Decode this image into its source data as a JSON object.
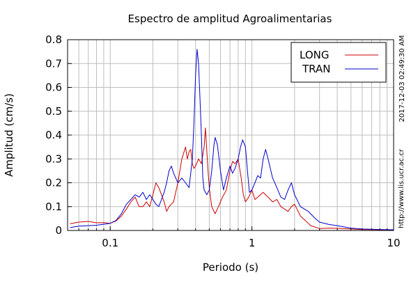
{
  "chart_data": {
    "type": "line",
    "title": "Espectro de amplitud Agroalimentarias",
    "xlabel": "Periodo (s)",
    "ylabel": "Amplitud (cm/s)",
    "x_scale": "log",
    "xlim": [
      0.05,
      10
    ],
    "ylim": [
      0,
      0.8
    ],
    "x_ticks": [
      {
        "value": 0.1,
        "label": "0.1"
      },
      {
        "value": 1,
        "label": "1"
      },
      {
        "value": 10,
        "label": "10"
      }
    ],
    "y_ticks": [
      {
        "value": 0,
        "label": "0"
      },
      {
        "value": 0.1,
        "label": "0.1"
      },
      {
        "value": 0.2,
        "label": "0.2"
      },
      {
        "value": 0.3,
        "label": "0.3"
      },
      {
        "value": 0.4,
        "label": "0.4"
      },
      {
        "value": 0.5,
        "label": "0.5"
      },
      {
        "value": 0.6,
        "label": "0.6"
      },
      {
        "value": 0.7,
        "label": "0.7"
      },
      {
        "value": 0.8,
        "label": "0.8"
      }
    ],
    "grid": true,
    "legend_position": "top-right",
    "series": [
      {
        "name": "LONG",
        "color": "#cc0000",
        "points": [
          [
            0.052,
            0.028
          ],
          [
            0.06,
            0.035
          ],
          [
            0.07,
            0.038
          ],
          [
            0.08,
            0.032
          ],
          [
            0.09,
            0.033
          ],
          [
            0.1,
            0.03
          ],
          [
            0.11,
            0.04
          ],
          [
            0.12,
            0.06
          ],
          [
            0.13,
            0.09
          ],
          [
            0.14,
            0.12
          ],
          [
            0.15,
            0.14
          ],
          [
            0.16,
            0.1
          ],
          [
            0.17,
            0.1
          ],
          [
            0.18,
            0.12
          ],
          [
            0.19,
            0.1
          ],
          [
            0.2,
            0.15
          ],
          [
            0.21,
            0.2
          ],
          [
            0.22,
            0.18
          ],
          [
            0.23,
            0.15
          ],
          [
            0.24,
            0.12
          ],
          [
            0.25,
            0.08
          ],
          [
            0.26,
            0.1
          ],
          [
            0.28,
            0.12
          ],
          [
            0.3,
            0.2
          ],
          [
            0.32,
            0.3
          ],
          [
            0.34,
            0.35
          ],
          [
            0.35,
            0.3
          ],
          [
            0.36,
            0.33
          ],
          [
            0.37,
            0.34
          ],
          [
            0.38,
            0.28
          ],
          [
            0.39,
            0.26
          ],
          [
            0.4,
            0.27
          ],
          [
            0.42,
            0.3
          ],
          [
            0.44,
            0.28
          ],
          [
            0.46,
            0.35
          ],
          [
            0.47,
            0.43
          ],
          [
            0.49,
            0.25
          ],
          [
            0.5,
            0.18
          ],
          [
            0.52,
            0.1
          ],
          [
            0.55,
            0.07
          ],
          [
            0.58,
            0.1
          ],
          [
            0.62,
            0.14
          ],
          [
            0.66,
            0.17
          ],
          [
            0.7,
            0.25
          ],
          [
            0.73,
            0.29
          ],
          [
            0.76,
            0.28
          ],
          [
            0.8,
            0.3
          ],
          [
            0.84,
            0.22
          ],
          [
            0.87,
            0.15
          ],
          [
            0.9,
            0.12
          ],
          [
            0.95,
            0.14
          ],
          [
            1.0,
            0.17
          ],
          [
            1.05,
            0.13
          ],
          [
            1.1,
            0.14
          ],
          [
            1.2,
            0.16
          ],
          [
            1.3,
            0.14
          ],
          [
            1.4,
            0.12
          ],
          [
            1.5,
            0.13
          ],
          [
            1.6,
            0.1
          ],
          [
            1.8,
            0.08
          ],
          [
            1.9,
            0.1
          ],
          [
            2.0,
            0.11
          ],
          [
            2.2,
            0.06
          ],
          [
            2.4,
            0.04
          ],
          [
            2.6,
            0.02
          ],
          [
            3.0,
            0.008
          ],
          [
            3.5,
            0.01
          ],
          [
            4.0,
            0.009
          ],
          [
            5.0,
            0.006
          ],
          [
            6.0,
            0.004
          ],
          [
            8.0,
            0.003
          ],
          [
            10.0,
            0.002
          ]
        ]
      },
      {
        "name": "TRAN",
        "color": "#0000cc",
        "points": [
          [
            0.052,
            0.012
          ],
          [
            0.06,
            0.018
          ],
          [
            0.07,
            0.02
          ],
          [
            0.08,
            0.022
          ],
          [
            0.09,
            0.026
          ],
          [
            0.1,
            0.03
          ],
          [
            0.11,
            0.042
          ],
          [
            0.12,
            0.07
          ],
          [
            0.13,
            0.11
          ],
          [
            0.14,
            0.13
          ],
          [
            0.15,
            0.15
          ],
          [
            0.16,
            0.14
          ],
          [
            0.17,
            0.16
          ],
          [
            0.18,
            0.13
          ],
          [
            0.19,
            0.15
          ],
          [
            0.2,
            0.13
          ],
          [
            0.21,
            0.11
          ],
          [
            0.22,
            0.1
          ],
          [
            0.23,
            0.13
          ],
          [
            0.24,
            0.16
          ],
          [
            0.25,
            0.2
          ],
          [
            0.26,
            0.25
          ],
          [
            0.27,
            0.27
          ],
          [
            0.28,
            0.24
          ],
          [
            0.3,
            0.2
          ],
          [
            0.32,
            0.22
          ],
          [
            0.34,
            0.2
          ],
          [
            0.36,
            0.18
          ],
          [
            0.38,
            0.3
          ],
          [
            0.39,
            0.45
          ],
          [
            0.4,
            0.65
          ],
          [
            0.41,
            0.76
          ],
          [
            0.42,
            0.7
          ],
          [
            0.43,
            0.55
          ],
          [
            0.44,
            0.4
          ],
          [
            0.45,
            0.22
          ],
          [
            0.46,
            0.17
          ],
          [
            0.48,
            0.15
          ],
          [
            0.5,
            0.17
          ],
          [
            0.52,
            0.25
          ],
          [
            0.54,
            0.36
          ],
          [
            0.55,
            0.39
          ],
          [
            0.57,
            0.36
          ],
          [
            0.6,
            0.25
          ],
          [
            0.63,
            0.17
          ],
          [
            0.66,
            0.22
          ],
          [
            0.7,
            0.27
          ],
          [
            0.73,
            0.24
          ],
          [
            0.76,
            0.26
          ],
          [
            0.8,
            0.3
          ],
          [
            0.83,
            0.35
          ],
          [
            0.86,
            0.38
          ],
          [
            0.9,
            0.35
          ],
          [
            0.93,
            0.25
          ],
          [
            0.96,
            0.16
          ],
          [
            1.0,
            0.17
          ],
          [
            1.05,
            0.2
          ],
          [
            1.1,
            0.23
          ],
          [
            1.15,
            0.22
          ],
          [
            1.2,
            0.3
          ],
          [
            1.25,
            0.34
          ],
          [
            1.3,
            0.3
          ],
          [
            1.4,
            0.22
          ],
          [
            1.5,
            0.18
          ],
          [
            1.6,
            0.14
          ],
          [
            1.7,
            0.13
          ],
          [
            1.8,
            0.17
          ],
          [
            1.9,
            0.2
          ],
          [
            2.0,
            0.15
          ],
          [
            2.2,
            0.1
          ],
          [
            2.5,
            0.08
          ],
          [
            2.8,
            0.05
          ],
          [
            3.0,
            0.035
          ],
          [
            3.5,
            0.025
          ],
          [
            4.0,
            0.02
          ],
          [
            5.0,
            0.01
          ],
          [
            6.0,
            0.006
          ],
          [
            8.0,
            0.004
          ],
          [
            10.0,
            0.003
          ]
        ]
      }
    ]
  },
  "side_texts": {
    "timestamp": "2017-12-03 02:49:30 AM",
    "url": "http://www.lis.ucr.ac.cr"
  }
}
